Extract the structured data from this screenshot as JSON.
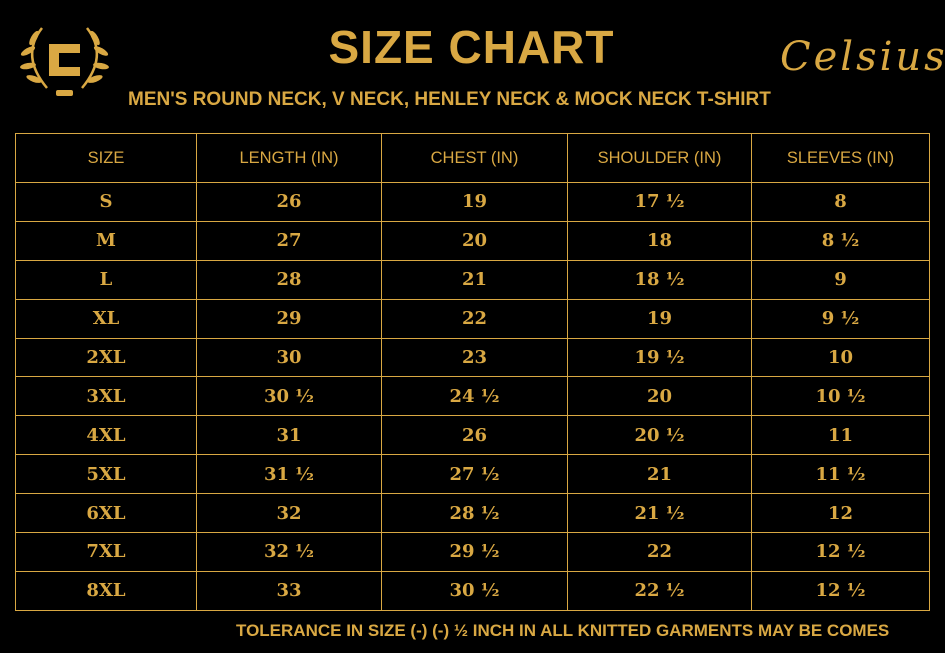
{
  "header": {
    "title": "SIZE CHART",
    "subtitle": "MEN'S ROUND NECK, V NECK, HENLEY NECK & MOCK NECK T-SHIRT",
    "brand": "Celsius",
    "logo_letter": "C"
  },
  "colors": {
    "accent": "#d9a843",
    "background": "#000000"
  },
  "table": {
    "headers": [
      "SIZE",
      "LENGTH (IN)",
      "CHEST (IN)",
      "SHOULDER (IN)",
      "SLEEVES (IN)"
    ],
    "rows": [
      [
        "S",
        "26",
        "19",
        "17 ½",
        "8"
      ],
      [
        "M",
        "27",
        "20",
        "18",
        "8 ½"
      ],
      [
        "L",
        "28",
        "21",
        "18 ½",
        "9"
      ],
      [
        "XL",
        "29",
        "22",
        "19",
        "9 ½"
      ],
      [
        "2XL",
        "30",
        "23",
        "19 ½",
        "10"
      ],
      [
        "3XL",
        "30 ½",
        "24 ½",
        "20",
        "10 ½"
      ],
      [
        "4XL",
        "31",
        "26",
        "20 ½",
        "11"
      ],
      [
        "5XL",
        "31 ½",
        "27 ½",
        "21",
        "11 ½"
      ],
      [
        "6XL",
        "32",
        "28 ½",
        "21 ½",
        "12"
      ],
      [
        "7XL",
        "32 ½",
        "29 ½",
        "22",
        "12 ½"
      ],
      [
        "8XL",
        "33",
        "30 ½",
        "22 ½",
        "12 ½"
      ]
    ]
  },
  "footer": "TOLERANCE IN SIZE (-) (-)  ½ INCH IN ALL KNITTED GARMENTS MAY BE COMES"
}
